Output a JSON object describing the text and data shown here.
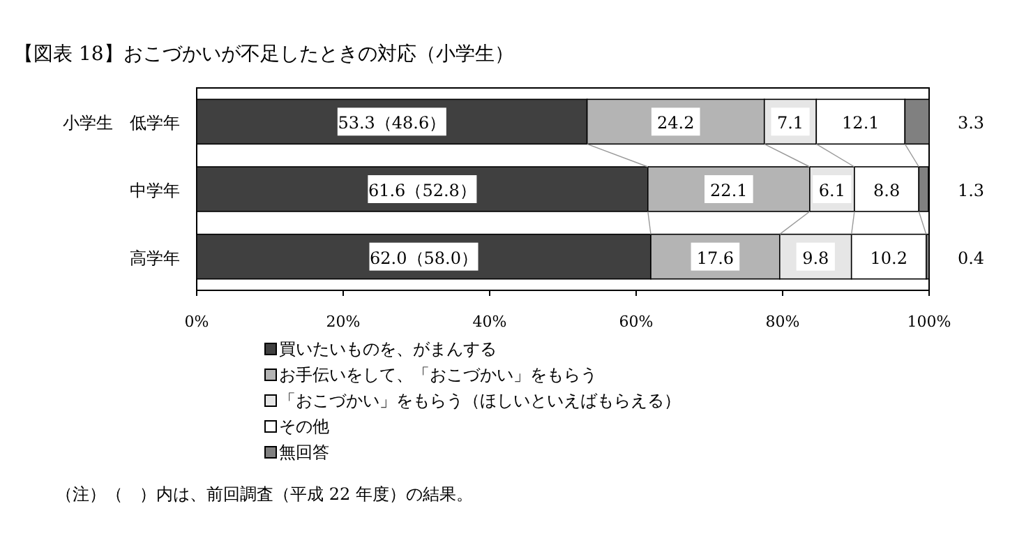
{
  "chart_data": {
    "type": "bar",
    "title": "【図表 18】おこづかいが不足したときの対応（小学生）",
    "orientation": "horizontal",
    "stacked": true,
    "grid": false,
    "legend": "bottom",
    "categories": [
      "小学生　低学年",
      "中学年",
      "高学年"
    ],
    "xlim": [
      0,
      100
    ],
    "xticks": [
      {
        "value": 0,
        "label": "0%"
      },
      {
        "value": 20,
        "label": "20%"
      },
      {
        "value": 40,
        "label": "40%"
      },
      {
        "value": 60,
        "label": "60%"
      },
      {
        "value": 80,
        "label": "80%"
      },
      {
        "value": 100,
        "label": "100%"
      }
    ],
    "series": [
      {
        "name": "買いたいものを、がまんする",
        "color": "#404040",
        "values": [
          53.3,
          61.6,
          62.0
        ],
        "value_labels": [
          "53.3（48.6）",
          "61.6（52.8）",
          "62.0（58.0）"
        ]
      },
      {
        "name": "お手伝いをして、「おこづかい」をもらう",
        "color": "#b4b4b4",
        "values": [
          24.2,
          22.1,
          17.6
        ],
        "value_labels": [
          "24.2",
          "22.1",
          "17.6"
        ]
      },
      {
        "name": "「おこづかい」をもらう（ほしいといえばもらえる）",
        "color": "#e6e6e6",
        "values": [
          7.1,
          6.1,
          9.8
        ],
        "value_labels": [
          "7.1",
          "6.1",
          "9.8"
        ]
      },
      {
        "name": "その他",
        "color": "#ffffff",
        "values": [
          12.1,
          8.8,
          10.2
        ],
        "value_labels": [
          "12.1",
          "8.8",
          "10.2"
        ]
      },
      {
        "name": "無回答",
        "color": "#808080",
        "values": [
          3.3,
          1.3,
          0.4
        ],
        "value_labels": [
          "3.3",
          "1.3",
          "0.4"
        ]
      }
    ],
    "annotations": [
      "（注）（　）内は、前回調査（平成 22 年度）の結果。"
    ]
  }
}
